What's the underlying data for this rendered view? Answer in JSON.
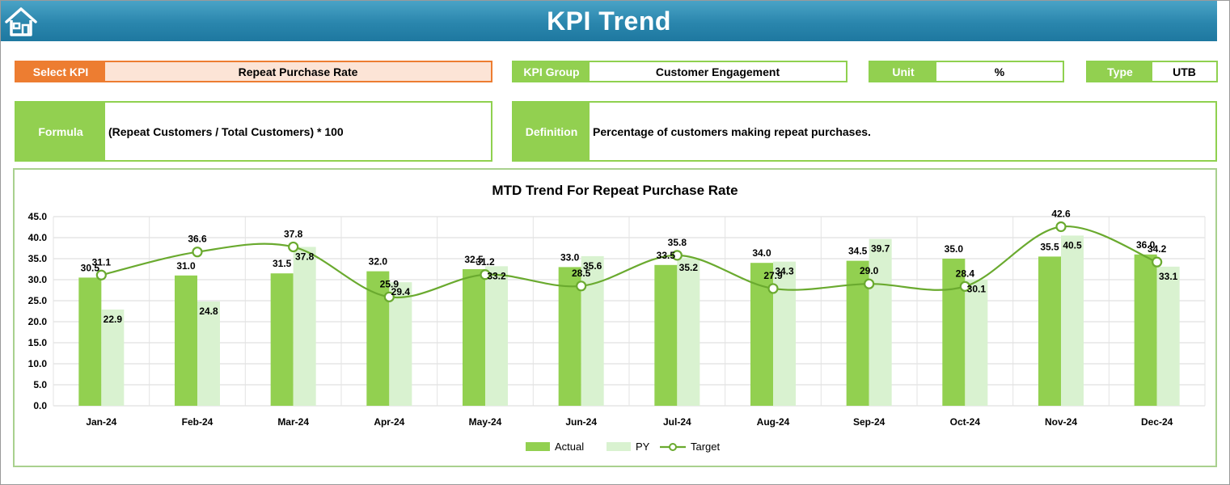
{
  "header": {
    "title": "KPI Trend",
    "home_icon": "home-icon"
  },
  "kpi": {
    "label": "Select KPI",
    "value": "Repeat Purchase Rate"
  },
  "group": {
    "label": "KPI Group",
    "value": "Customer Engagement"
  },
  "unit": {
    "label": "Unit",
    "value": "%"
  },
  "type": {
    "label": "Type",
    "value": "UTB"
  },
  "formula": {
    "label": "Formula",
    "value": "(Repeat Customers / Total Customers) * 100"
  },
  "definition": {
    "label": "Definition",
    "value": "Percentage of customers making repeat purchases."
  },
  "colors": {
    "actual": "#92d050",
    "py": "#d9f2d0",
    "target": "#6aaa2f",
    "accent": "#ed7d31",
    "header": "#2a86ad"
  },
  "chart_data": {
    "type": "bar",
    "title": "MTD Trend For Repeat Purchase Rate",
    "categories": [
      "Jan-24",
      "Feb-24",
      "Mar-24",
      "Apr-24",
      "May-24",
      "Jun-24",
      "Jul-24",
      "Aug-24",
      "Sep-24",
      "Oct-24",
      "Nov-24",
      "Dec-24"
    ],
    "series": [
      {
        "name": "Actual",
        "kind": "bar",
        "values": [
          30.5,
          31.0,
          31.5,
          32.0,
          32.5,
          33.0,
          33.5,
          34.0,
          34.5,
          35.0,
          35.5,
          36.0
        ]
      },
      {
        "name": "PY",
        "kind": "bar",
        "values": [
          22.9,
          24.8,
          37.8,
          29.4,
          33.2,
          35.6,
          35.2,
          34.3,
          39.7,
          30.1,
          40.5,
          33.1
        ]
      },
      {
        "name": "Target",
        "kind": "line",
        "values": [
          31.1,
          36.6,
          37.8,
          25.9,
          31.2,
          28.5,
          35.8,
          27.9,
          29.0,
          28.4,
          42.6,
          34.2
        ]
      }
    ],
    "ylim": [
      0,
      45
    ],
    "yticks": [
      "0.0",
      "5.0",
      "10.0",
      "15.0",
      "20.0",
      "25.0",
      "30.0",
      "35.0",
      "40.0",
      "45.0"
    ],
    "grid": true,
    "legend": "bottom-center"
  }
}
